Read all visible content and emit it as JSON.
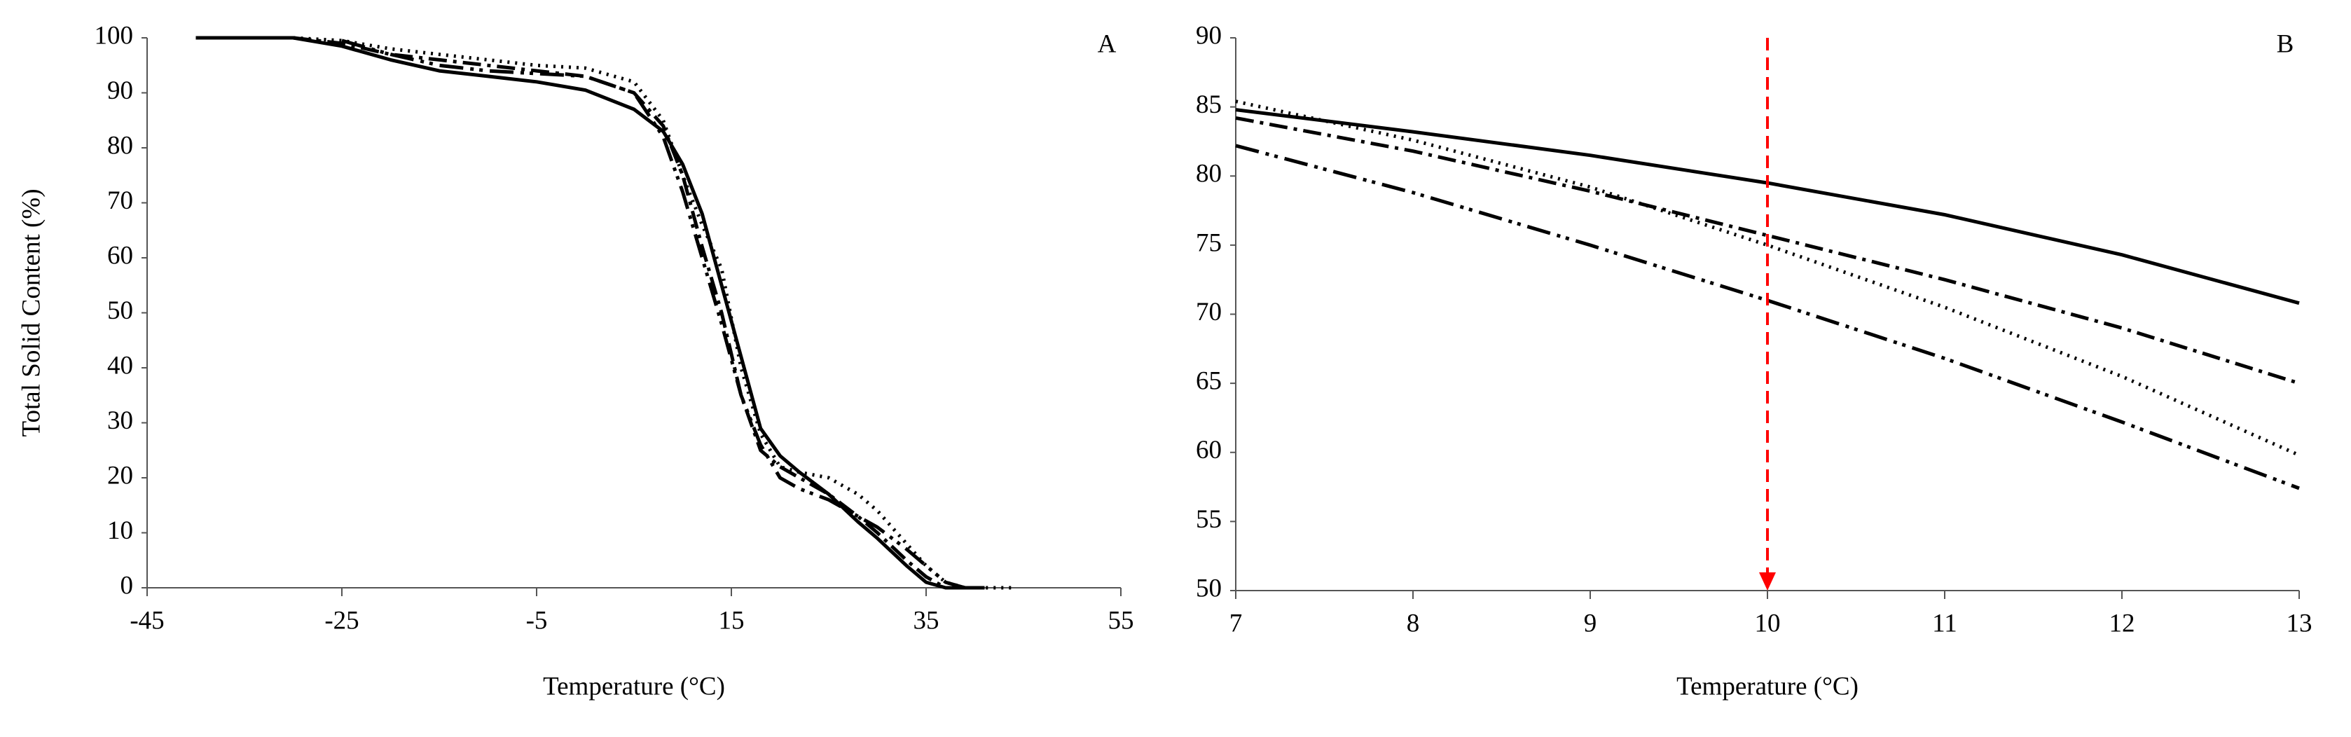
{
  "chart_data": [
    {
      "type": "line",
      "annotation": "A",
      "xlabel": "Temperature (°C)",
      "ylabel": "Total Solid Content (%)",
      "xlim": [
        -45,
        55
      ],
      "xticks": [
        -45,
        -25,
        -5,
        15,
        35,
        55
      ],
      "ylim": [
        0,
        100
      ],
      "yticks": [
        0,
        10,
        20,
        30,
        40,
        50,
        60,
        70,
        80,
        90,
        100
      ],
      "grid": false,
      "x": [
        -40,
        -30,
        -25,
        -20,
        -15,
        -10,
        -5,
        0,
        5,
        8,
        10,
        12,
        14,
        16,
        18,
        20,
        22,
        25,
        28,
        30,
        33,
        35,
        37,
        39,
        41,
        44
      ],
      "series": [
        {
          "color": "#000000",
          "style": "solid",
          "values": [
            100,
            100,
            98.5,
            96,
            94,
            93,
            92,
            90.5,
            87,
            83,
            77,
            68,
            55,
            42,
            29,
            24,
            21,
            17,
            12,
            9,
            4,
            1,
            0,
            0,
            0,
            null
          ]
        },
        {
          "color": "#000000",
          "style": "dotted",
          "values": [
            null,
            100,
            99.5,
            98,
            97,
            96,
            95,
            94.5,
            92,
            85,
            75,
            66,
            58,
            40,
            28,
            22,
            21,
            20,
            17,
            14,
            8,
            4,
            1,
            0,
            0,
            0
          ]
        },
        {
          "color": "#000000",
          "style": "dashdot",
          "values": [
            null,
            100,
            99,
            97,
            96,
            95,
            94,
            93,
            90,
            84,
            75,
            62,
            50,
            35,
            25,
            22,
            20,
            17,
            13,
            10,
            5,
            2,
            0,
            0,
            0,
            null
          ]
        },
        {
          "color": "#000000",
          "style": "dashdotdot",
          "values": [
            null,
            null,
            99.5,
            97,
            95,
            94,
            93.5,
            93,
            90,
            82,
            72,
            60,
            48,
            35,
            26,
            20,
            18,
            16,
            13,
            11,
            7,
            4,
            1,
            0,
            0,
            null
          ]
        }
      ]
    },
    {
      "type": "line",
      "annotation": "B",
      "xlabel": "Temperature (°C)",
      "xlim": [
        7,
        13
      ],
      "xticks": [
        7,
        8,
        9,
        10,
        11,
        12,
        13
      ],
      "ylim": [
        50,
        90
      ],
      "yticks": [
        50,
        55,
        60,
        65,
        70,
        75,
        80,
        85,
        90
      ],
      "grid": false,
      "x": [
        7,
        8,
        9,
        10,
        11,
        12,
        13
      ],
      "series": [
        {
          "color": "#000000",
          "style": "solid",
          "values": [
            84.8,
            83.2,
            81.5,
            79.5,
            77.2,
            74.3,
            70.8
          ]
        },
        {
          "color": "#000000",
          "style": "dashdot",
          "values": [
            84.2,
            81.8,
            78.9,
            75.7,
            72.5,
            69,
            65
          ]
        },
        {
          "color": "#000000",
          "style": "dotted",
          "values": [
            85.4,
            82.6,
            79.2,
            75,
            70.5,
            65.5,
            59.8
          ]
        },
        {
          "color": "#000000",
          "style": "dashdotdot",
          "values": [
            82.2,
            78.8,
            75,
            71,
            66.8,
            62.2,
            57.4
          ]
        }
      ],
      "vline": {
        "x": 10,
        "color": "#ff0000"
      }
    }
  ]
}
